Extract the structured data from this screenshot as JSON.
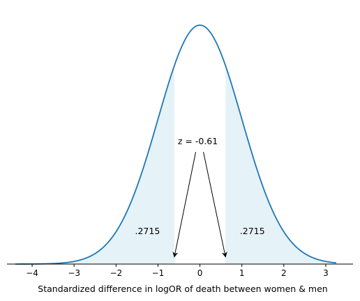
{
  "chart_data": {
    "type": "area",
    "title": "",
    "xlabel": "Standardized difference in logOR of death between women & men",
    "ylabel": "",
    "xlim": [
      -4.6,
      3.65
    ],
    "x_range": [
      -4.4,
      3.25
    ],
    "ylim": [
      0,
      0.42
    ],
    "grid": false,
    "x_ticks": [
      -4,
      -3,
      -2,
      -1,
      0,
      1,
      2,
      3
    ],
    "x_tick_labels": [
      "−4",
      "−3",
      "−2",
      "−1",
      "0",
      "1",
      "2",
      "3"
    ],
    "series": [
      {
        "distribution": "standard normal density",
        "mean": 0,
        "sd": 1,
        "color": "#1f77b4"
      }
    ],
    "shaded_regions": [
      {
        "from": -4.4,
        "to": -0.61,
        "color": "#add8e6",
        "label": ".2715",
        "label_x": -1.25,
        "label_y": 0.05
      },
      {
        "from": 0.61,
        "to": 3.25,
        "color": "#add8e6",
        "label": ".2715",
        "label_x": 1.25,
        "label_y": 0.05
      }
    ],
    "annotation": {
      "text": "z = -0.61",
      "x": -0.05,
      "y": 0.2,
      "arrows_to": [
        {
          "x": -0.61,
          "y": 0.012
        },
        {
          "x": 0.61,
          "y": 0.012
        }
      ]
    }
  }
}
